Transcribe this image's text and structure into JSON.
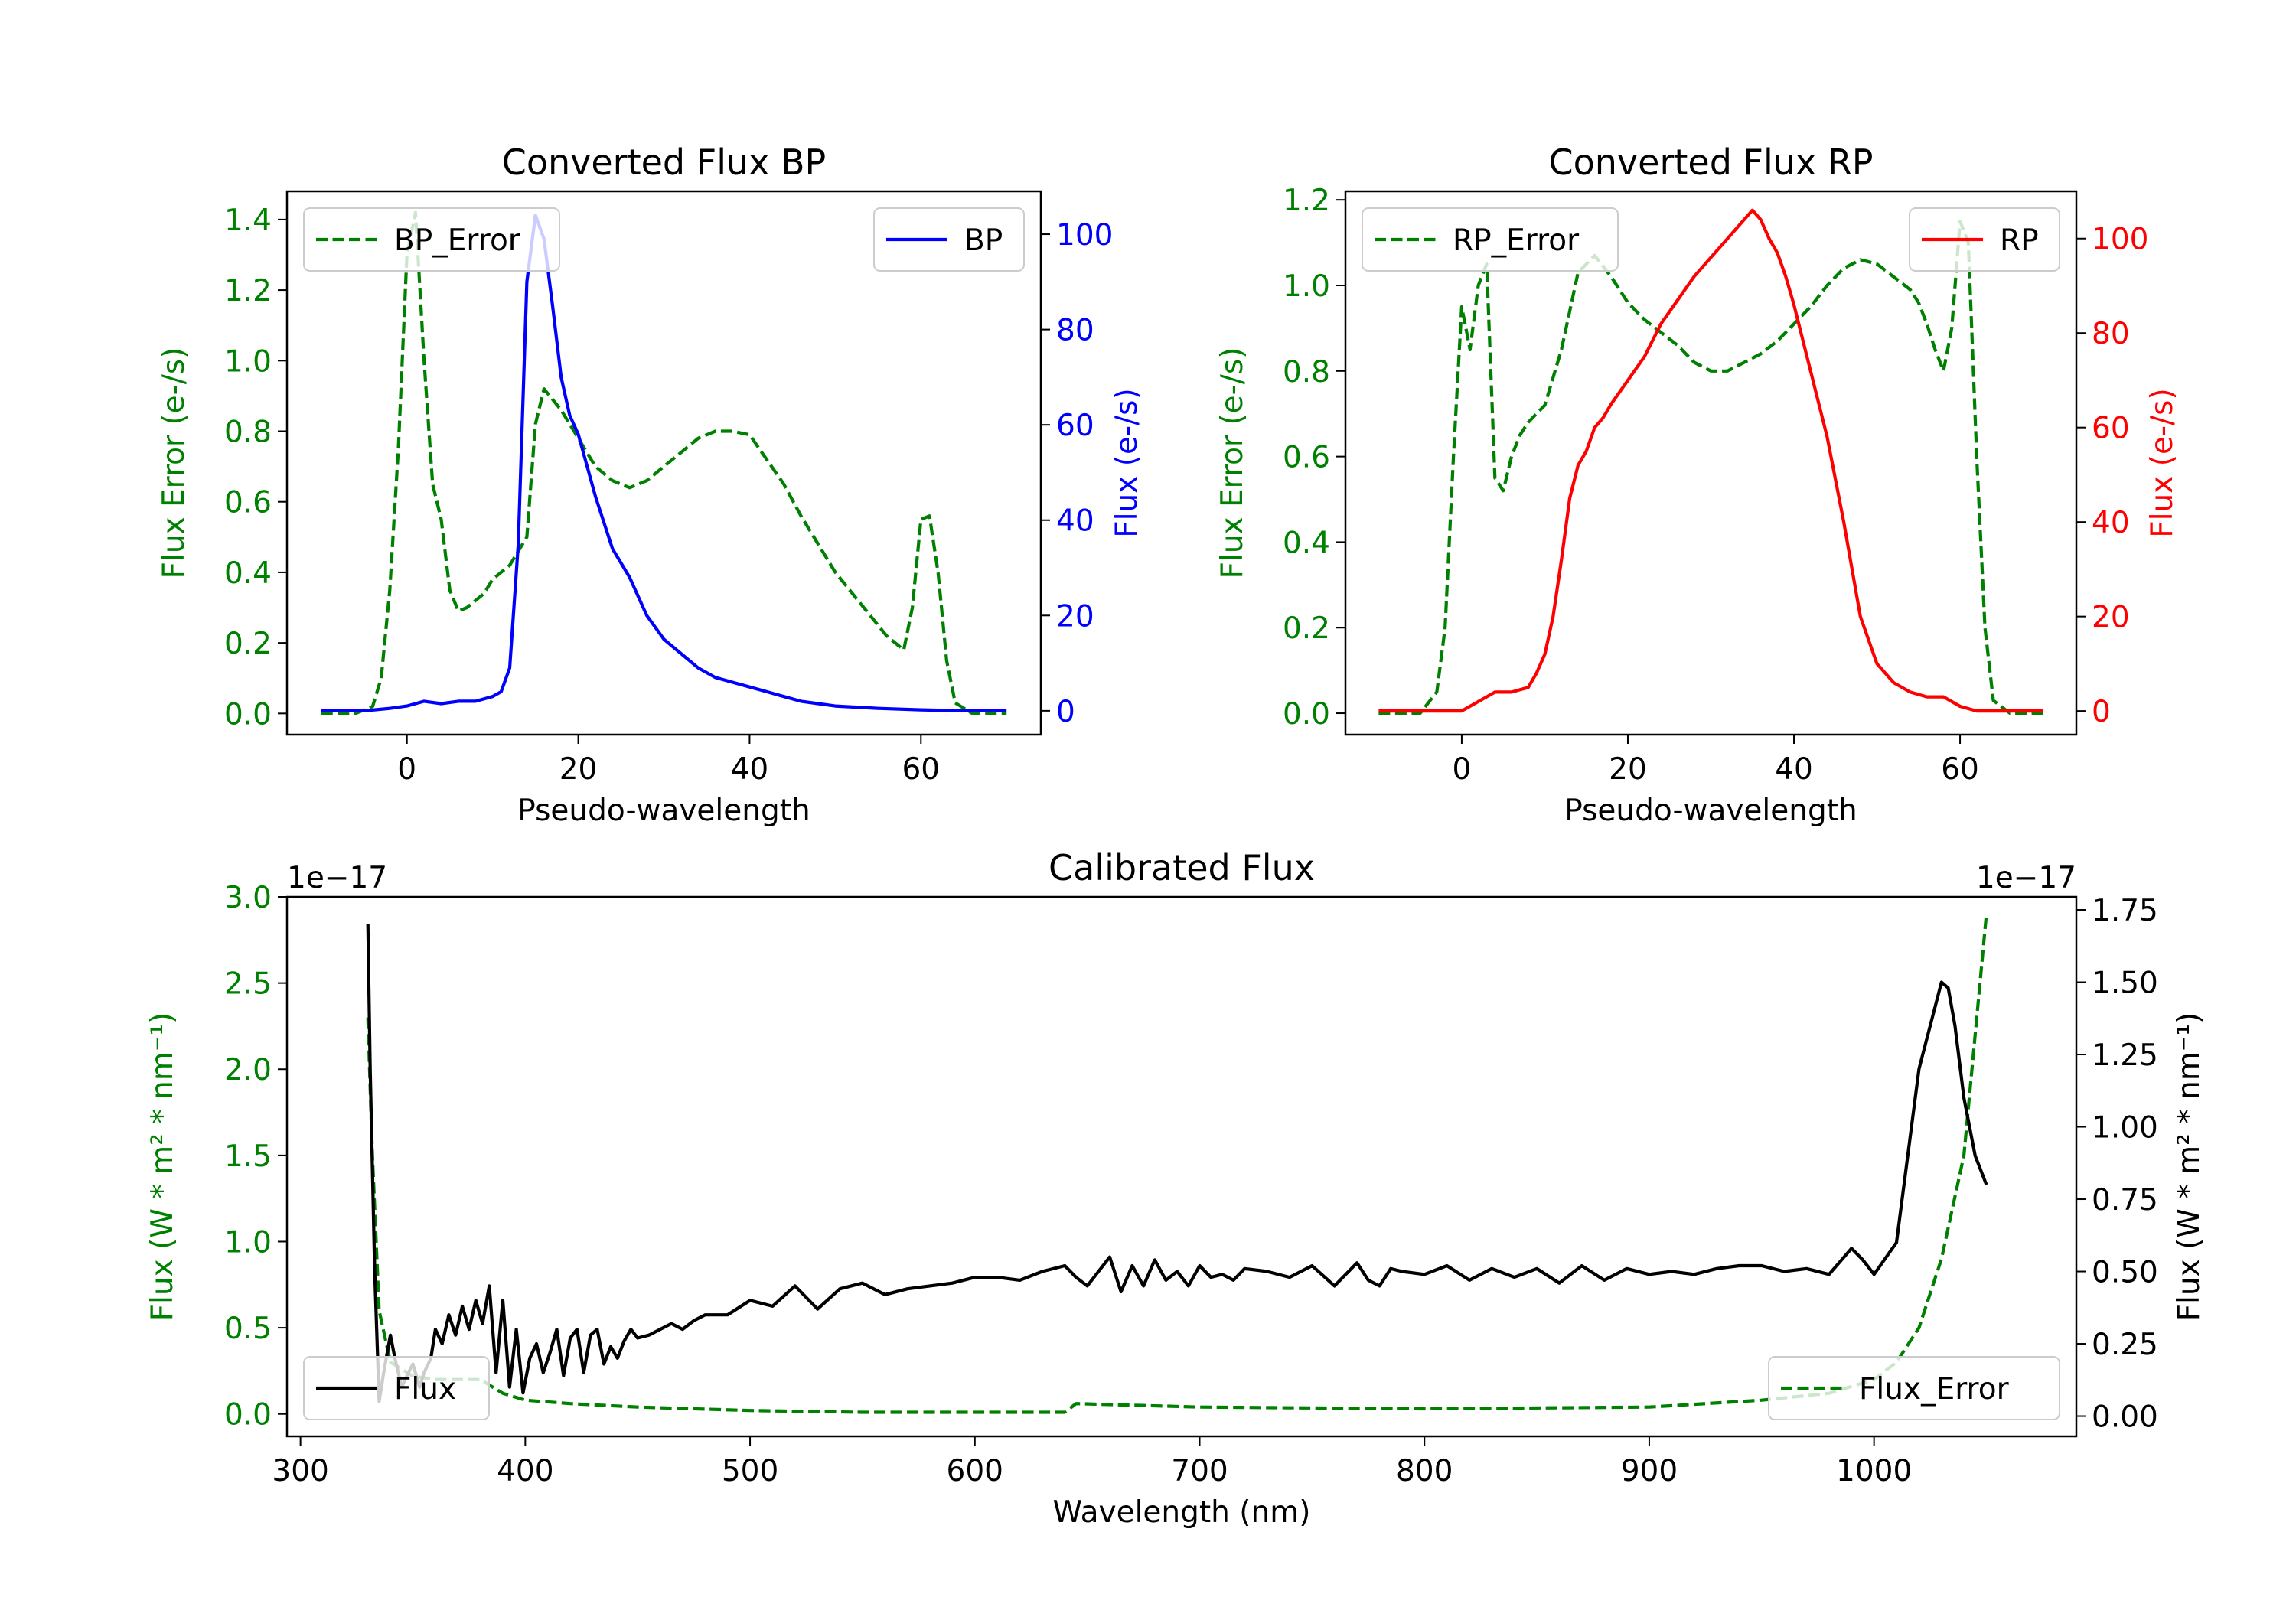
{
  "chart_data": [
    {
      "type": "line",
      "title": "Converted Flux BP",
      "xlabel": "Pseudo-wavelength",
      "ylabel_left": "Flux Error (e-/s)",
      "ylabel_right": "Flux (e-/s)",
      "xlim": [
        -14,
        74
      ],
      "ylim_left": [
        -0.06,
        1.48
      ],
      "ylim_right": [
        -5,
        109
      ],
      "xticks": [
        0,
        20,
        40,
        60
      ],
      "yticks_left": [
        0.0,
        0.2,
        0.4,
        0.6,
        0.8,
        1.0,
        1.2,
        1.4
      ],
      "yticks_right": [
        0,
        20,
        40,
        60,
        80,
        100
      ],
      "legend_left": {
        "label": "BP_Error",
        "position": "top-left"
      },
      "legend_right": {
        "label": "BP",
        "position": "top-right"
      },
      "colors": {
        "left": "#008000",
        "right": "#0000ff"
      },
      "series": [
        {
          "name": "BP_Error",
          "axis": "left",
          "style": "dashed",
          "x": [
            -10,
            -6,
            -4,
            -3,
            -2,
            -1,
            0,
            1,
            2,
            3,
            4,
            5,
            6,
            7,
            8,
            9,
            10,
            12,
            14,
            15,
            16,
            18,
            20,
            22,
            24,
            26,
            28,
            30,
            32,
            34,
            36,
            38,
            40,
            42,
            44,
            46,
            48,
            50,
            52,
            54,
            56,
            57,
            58,
            59,
            60,
            61,
            62,
            63,
            64,
            66,
            70
          ],
          "y": [
            0.0,
            0.0,
            0.02,
            0.1,
            0.35,
            0.75,
            1.3,
            1.42,
            1.0,
            0.65,
            0.55,
            0.35,
            0.29,
            0.3,
            0.32,
            0.34,
            0.38,
            0.42,
            0.5,
            0.82,
            0.92,
            0.86,
            0.78,
            0.7,
            0.66,
            0.64,
            0.66,
            0.7,
            0.74,
            0.78,
            0.8,
            0.8,
            0.79,
            0.72,
            0.65,
            0.56,
            0.48,
            0.4,
            0.34,
            0.28,
            0.22,
            0.2,
            0.18,
            0.3,
            0.55,
            0.56,
            0.4,
            0.15,
            0.03,
            0.0,
            0.0
          ]
        },
        {
          "name": "BP",
          "axis": "right",
          "style": "solid",
          "x": [
            -10,
            -5,
            -2,
            0,
            2,
            4,
            6,
            8,
            10,
            11,
            12,
            13,
            14,
            15,
            16,
            17,
            18,
            19,
            20,
            22,
            24,
            26,
            28,
            30,
            32,
            34,
            36,
            38,
            40,
            42,
            44,
            46,
            48,
            50,
            55,
            60,
            65,
            70
          ],
          "y": [
            0,
            0,
            0.5,
            1,
            2,
            1.5,
            2,
            2,
            3,
            4,
            9,
            35,
            90,
            104,
            99,
            85,
            70,
            62,
            58,
            45,
            34,
            28,
            20,
            15,
            12,
            9,
            7,
            6,
            5,
            4,
            3,
            2,
            1.5,
            1,
            0.5,
            0.2,
            0,
            0
          ]
        }
      ]
    },
    {
      "type": "line",
      "title": "Converted Flux RP",
      "xlabel": "Pseudo-wavelength",
      "ylabel_left": "Flux Error (e-/s)",
      "ylabel_right": "Flux (e-/s)",
      "xlim": [
        -14,
        74
      ],
      "ylim_left": [
        -0.05,
        1.22
      ],
      "ylim_right": [
        -5,
        110
      ],
      "xticks": [
        0,
        20,
        40,
        60
      ],
      "yticks_left": [
        0.0,
        0.2,
        0.4,
        0.6,
        0.8,
        1.0,
        1.2
      ],
      "yticks_right": [
        0,
        20,
        40,
        60,
        80,
        100
      ],
      "legend_left": {
        "label": "RP_Error",
        "position": "top-left"
      },
      "legend_right": {
        "label": "RP",
        "position": "top-right"
      },
      "colors": {
        "left": "#008000",
        "right": "#ff0000"
      },
      "series": [
        {
          "name": "RP_Error",
          "axis": "right_none",
          "style": "dashed",
          "axis_ref": "left",
          "x": [
            -10,
            -5,
            -3,
            -2,
            -1,
            0,
            1,
            2,
            3,
            4,
            5,
            6,
            7,
            8,
            9,
            10,
            12,
            14,
            16,
            18,
            20,
            22,
            24,
            26,
            28,
            30,
            32,
            34,
            36,
            38,
            40,
            42,
            44,
            46,
            48,
            50,
            52,
            54,
            55,
            56,
            57,
            58,
            59,
            60,
            61,
            62,
            63,
            64,
            66,
            70
          ],
          "y": [
            0.0,
            0.0,
            0.05,
            0.2,
            0.6,
            0.95,
            0.85,
            1.0,
            1.05,
            0.55,
            0.52,
            0.6,
            0.65,
            0.68,
            0.7,
            0.72,
            0.85,
            1.03,
            1.07,
            1.02,
            0.96,
            0.92,
            0.89,
            0.86,
            0.82,
            0.8,
            0.8,
            0.82,
            0.84,
            0.87,
            0.91,
            0.95,
            1.0,
            1.04,
            1.06,
            1.05,
            1.02,
            0.99,
            0.96,
            0.91,
            0.85,
            0.8,
            0.9,
            1.15,
            1.1,
            0.6,
            0.2,
            0.03,
            0.0,
            0.0
          ]
        },
        {
          "name": "RP",
          "axis": "right",
          "style": "solid",
          "x": [
            -10,
            -5,
            0,
            2,
            4,
            6,
            8,
            9,
            10,
            11,
            12,
            13,
            14,
            15,
            16,
            17,
            18,
            20,
            22,
            24,
            26,
            28,
            30,
            32,
            34,
            35,
            36,
            37,
            38,
            39,
            40,
            42,
            44,
            46,
            48,
            50,
            52,
            54,
            56,
            58,
            60,
            62,
            64,
            66,
            70
          ],
          "y": [
            0,
            0,
            0,
            2,
            4,
            4,
            5,
            8,
            12,
            20,
            32,
            45,
            52,
            55,
            60,
            62,
            65,
            70,
            75,
            82,
            87,
            92,
            96,
            100,
            104,
            106,
            104,
            100,
            97,
            92,
            86,
            72,
            58,
            40,
            20,
            10,
            6,
            4,
            3,
            3,
            1,
            0,
            0,
            0,
            0
          ]
        }
      ]
    },
    {
      "type": "line",
      "title": "Calibrated Flux",
      "xlabel": "Wavelength (nm)",
      "ylabel_left": "Flux (W * m² * nm⁻¹)",
      "ylabel_right": "Flux (W * m² * nm⁻¹)",
      "offset_left": "1e−17",
      "offset_right": "1e−17",
      "xlim": [
        294,
        1090
      ],
      "ylim_left": [
        -0.13,
        3.0
      ],
      "ylim_right": [
        -0.07,
        1.795
      ],
      "xticks": [
        300,
        400,
        500,
        600,
        700,
        800,
        900,
        1000
      ],
      "yticks_left": [
        0.0,
        0.5,
        1.0,
        1.5,
        2.0,
        2.5,
        3.0
      ],
      "yticks_right": [
        0.0,
        0.25,
        0.5,
        0.75,
        1.0,
        1.25,
        1.5,
        1.75
      ],
      "ytick_labels_left": [
        "0.0",
        "0.5",
        "1.0",
        "1.5",
        "2.0",
        "2.5",
        "3.0"
      ],
      "ytick_labels_right": [
        "0.00",
        "0.25",
        "0.50",
        "0.75",
        "1.00",
        "1.25",
        "1.50",
        "1.75"
      ],
      "legend_left": {
        "label": "Flux",
        "position": "lower-left"
      },
      "legend_right": {
        "label": "Flux_Error",
        "position": "lower-right"
      },
      "colors": {
        "left": "#008000",
        "right": "#000000"
      },
      "series": [
        {
          "name": "Flux_Error",
          "axis": "left",
          "style": "dashed",
          "x": [
            330,
            332,
            335,
            340,
            350,
            360,
            370,
            380,
            390,
            400,
            420,
            450,
            500,
            550,
            600,
            640,
            645,
            700,
            800,
            900,
            950,
            980,
            1000,
            1010,
            1020,
            1030,
            1040,
            1050
          ],
          "y": [
            2.3,
            1.5,
            0.6,
            0.3,
            0.22,
            0.2,
            0.2,
            0.2,
            0.12,
            0.08,
            0.06,
            0.04,
            0.02,
            0.01,
            0.01,
            0.01,
            0.06,
            0.04,
            0.03,
            0.04,
            0.08,
            0.12,
            0.2,
            0.3,
            0.5,
            0.9,
            1.5,
            2.9
          ]
        },
        {
          "name": "Flux",
          "axis": "right",
          "style": "solid",
          "x": [
            330,
            331,
            333,
            335,
            337,
            340,
            342,
            345,
            348,
            350,
            353,
            355,
            358,
            360,
            363,
            366,
            369,
            372,
            375,
            378,
            381,
            384,
            387,
            390,
            393,
            396,
            399,
            402,
            405,
            408,
            411,
            414,
            417,
            420,
            423,
            426,
            429,
            432,
            435,
            438,
            441,
            444,
            447,
            450,
            455,
            460,
            465,
            470,
            475,
            480,
            490,
            500,
            510,
            520,
            530,
            540,
            550,
            560,
            570,
            580,
            590,
            600,
            610,
            620,
            630,
            640,
            645,
            650,
            655,
            660,
            665,
            670,
            675,
            680,
            685,
            690,
            695,
            700,
            705,
            710,
            715,
            720,
            730,
            740,
            750,
            760,
            770,
            775,
            780,
            785,
            790,
            800,
            810,
            820,
            830,
            840,
            850,
            860,
            870,
            880,
            890,
            900,
            910,
            920,
            930,
            940,
            950,
            960,
            970,
            980,
            990,
            995,
            1000,
            1010,
            1020,
            1030,
            1033,
            1036,
            1040,
            1045,
            1050
          ],
          "y": [
            1.7,
            1.2,
            0.5,
            0.05,
            0.15,
            0.28,
            0.2,
            0.1,
            0.15,
            0.18,
            0.1,
            0.15,
            0.2,
            0.3,
            0.25,
            0.35,
            0.28,
            0.38,
            0.3,
            0.4,
            0.32,
            0.45,
            0.15,
            0.4,
            0.1,
            0.3,
            0.08,
            0.2,
            0.25,
            0.15,
            0.22,
            0.3,
            0.14,
            0.27,
            0.3,
            0.15,
            0.28,
            0.3,
            0.18,
            0.24,
            0.2,
            0.26,
            0.3,
            0.27,
            0.28,
            0.3,
            0.32,
            0.3,
            0.33,
            0.35,
            0.35,
            0.4,
            0.38,
            0.45,
            0.37,
            0.44,
            0.46,
            0.42,
            0.44,
            0.45,
            0.46,
            0.48,
            0.48,
            0.47,
            0.5,
            0.52,
            0.48,
            0.45,
            0.5,
            0.55,
            0.43,
            0.52,
            0.45,
            0.54,
            0.47,
            0.5,
            0.45,
            0.52,
            0.48,
            0.49,
            0.47,
            0.51,
            0.5,
            0.48,
            0.52,
            0.45,
            0.53,
            0.47,
            0.45,
            0.51,
            0.5,
            0.49,
            0.52,
            0.47,
            0.51,
            0.48,
            0.51,
            0.46,
            0.52,
            0.47,
            0.51,
            0.49,
            0.5,
            0.49,
            0.51,
            0.52,
            0.52,
            0.5,
            0.51,
            0.49,
            0.58,
            0.54,
            0.49,
            0.6,
            1.2,
            1.5,
            1.48,
            1.35,
            1.1,
            0.9,
            0.8
          ]
        }
      ]
    }
  ]
}
